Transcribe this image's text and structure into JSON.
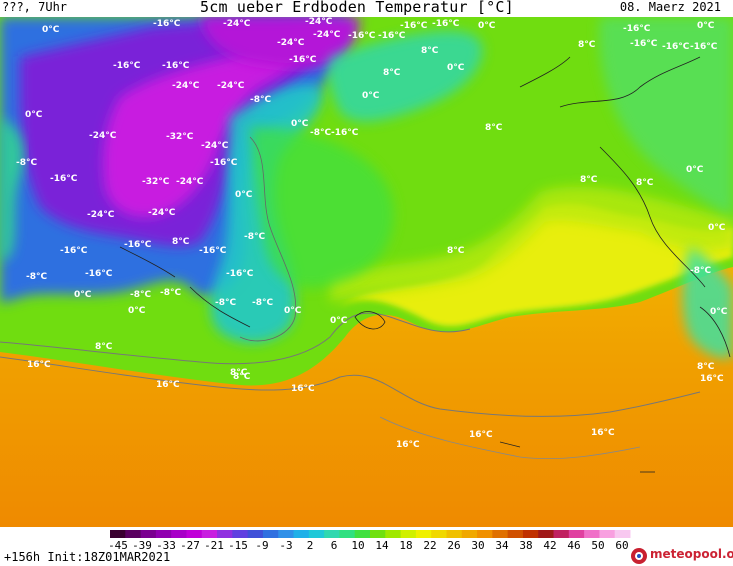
{
  "header": {
    "left": "???, 7Uhr",
    "title": "5cm ueber Erdboden Temperatur [°C]",
    "date": "08. Maerz 2021"
  },
  "footer": {
    "run": "+156h  Init:18Z01MAR2021",
    "logo": "meteopool.org"
  },
  "legend": {
    "ticks": [
      "-45",
      "-39",
      "-33",
      "-27",
      "-21",
      "-15",
      "-9",
      "-3",
      "2",
      "6",
      "10",
      "14",
      "18",
      "22",
      "26",
      "30",
      "34",
      "38",
      "42",
      "46",
      "50",
      "60"
    ],
    "colors": [
      "#3a0030",
      "#5a0060",
      "#7a0090",
      "#9000b0",
      "#a800c8",
      "#c000d8",
      "#c81ee0",
      "#9030e0",
      "#6040e0",
      "#4050d8",
      "#3070e0",
      "#3090e8",
      "#20b0e8",
      "#20c8d8",
      "#30d8b0",
      "#30e080",
      "#40e040",
      "#70e010",
      "#a0e800",
      "#d0f000",
      "#f0f000",
      "#f0d800",
      "#f0c000",
      "#f0a800",
      "#f09000",
      "#e07000",
      "#d05000",
      "#c03000",
      "#a01818",
      "#c02060",
      "#e040a0",
      "#f070c8",
      "#f8a0e0",
      "#f8c8f0"
    ]
  },
  "labels": [
    {
      "t": "0°C"
    },
    {
      "t": "-16°C"
    },
    {
      "t": "-24°C"
    },
    {
      "t": "-24°C"
    },
    {
      "t": "-16°C"
    },
    {
      "t": "-16°C"
    },
    {
      "t": "0°C"
    },
    {
      "t": "-16°C"
    },
    {
      "t": "0°C"
    },
    {
      "t": "-24°C"
    },
    {
      "t": "-24°C"
    },
    {
      "t": "-16°C"
    },
    {
      "t": "-16°C"
    },
    {
      "t": "8°C"
    },
    {
      "t": "-16°C"
    },
    {
      "t": "-16°C"
    },
    {
      "t": "-16°C"
    },
    {
      "t": "8°C"
    },
    {
      "t": "-16°C"
    },
    {
      "t": "-16°C"
    },
    {
      "t": "-16°C"
    },
    {
      "t": "0°C"
    },
    {
      "t": "8°C"
    },
    {
      "t": "0°C"
    },
    {
      "t": "-24°C"
    },
    {
      "t": "-24°C"
    },
    {
      "t": "-8°C"
    },
    {
      "t": "0°C"
    },
    {
      "t": "0°C"
    },
    {
      "t": "-8°C"
    },
    {
      "t": "-16°C"
    },
    {
      "t": "-24°C"
    },
    {
      "t": "-32°C"
    },
    {
      "t": "8°C"
    },
    {
      "t": "-24°C"
    },
    {
      "t": "-8°C"
    },
    {
      "t": "-16°C"
    },
    {
      "t": "-16°C"
    },
    {
      "t": "-32°C"
    },
    {
      "t": "-24°C"
    },
    {
      "t": "0°C"
    },
    {
      "t": "8°C"
    },
    {
      "t": "8°C"
    },
    {
      "t": "-24°C"
    },
    {
      "t": "-24°C"
    },
    {
      "t": "0°C"
    },
    {
      "t": "-16°C"
    },
    {
      "t": "-16°C"
    },
    {
      "t": "8°C"
    },
    {
      "t": "-16°C"
    },
    {
      "t": "-8°C"
    },
    {
      "t": "8°C"
    },
    {
      "t": "-8°C"
    },
    {
      "t": "-16°C"
    },
    {
      "t": "-16°C"
    },
    {
      "t": "-8°C"
    },
    {
      "t": "0°C"
    },
    {
      "t": "-8°C"
    },
    {
      "t": "-8°C"
    },
    {
      "t": "0°C"
    },
    {
      "t": "0°C"
    },
    {
      "t": "0°C"
    },
    {
      "t": "8°C"
    },
    {
      "t": "8°C"
    },
    {
      "t": "16°C"
    },
    {
      "t": "8°C"
    },
    {
      "t": "16°C"
    },
    {
      "t": "16°C"
    },
    {
      "t": "8°C"
    },
    {
      "t": "16°C"
    },
    {
      "t": "16°C"
    },
    {
      "t": "16°C"
    },
    {
      "t": "16°C"
    },
    {
      "t": "0°C"
    },
    {
      "t": "-8°C"
    },
    {
      "t": "-8°C"
    },
    {
      "t": "0°C"
    }
  ]
}
